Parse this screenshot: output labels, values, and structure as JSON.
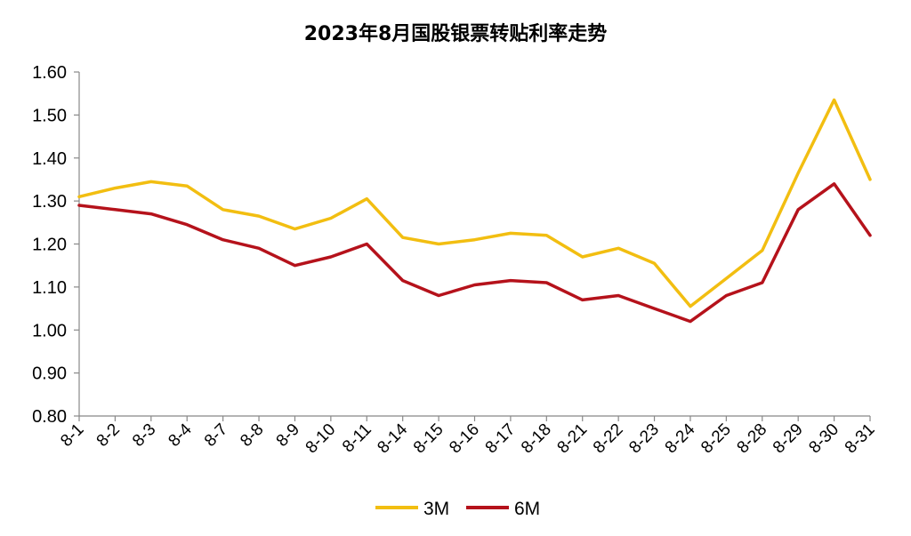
{
  "chart_data": {
    "type": "line",
    "title": "2023年8月国股银票转贴利率走势",
    "xlabel": "",
    "ylabel": "",
    "ylim": [
      0.8,
      1.6
    ],
    "yticks": [
      "0.80",
      "0.90",
      "1.00",
      "1.10",
      "1.20",
      "1.30",
      "1.40",
      "1.50",
      "1.60"
    ],
    "categories": [
      "8-1",
      "8-2",
      "8-3",
      "8-4",
      "8-7",
      "8-8",
      "8-9",
      "8-10",
      "8-11",
      "8-14",
      "8-15",
      "8-16",
      "8-17",
      "8-18",
      "8-21",
      "8-22",
      "8-23",
      "8-24",
      "8-25",
      "8-28",
      "8-29",
      "8-30",
      "8-31"
    ],
    "series": [
      {
        "name": "3M",
        "color": "#F2BE11",
        "values": [
          1.31,
          1.33,
          1.345,
          1.335,
          1.28,
          1.265,
          1.235,
          1.26,
          1.305,
          1.215,
          1.2,
          1.21,
          1.225,
          1.22,
          1.17,
          1.19,
          1.155,
          1.055,
          1.12,
          1.185,
          1.365,
          1.535,
          1.35
        ]
      },
      {
        "name": "6M",
        "color": "#B5121B",
        "values": [
          1.29,
          1.28,
          1.27,
          1.245,
          1.21,
          1.19,
          1.15,
          1.17,
          1.2,
          1.115,
          1.08,
          1.105,
          1.115,
          1.11,
          1.07,
          1.08,
          1.05,
          1.02,
          1.08,
          1.11,
          1.28,
          1.34,
          1.22
        ]
      }
    ],
    "grid": false,
    "legend": "bottom-center"
  }
}
